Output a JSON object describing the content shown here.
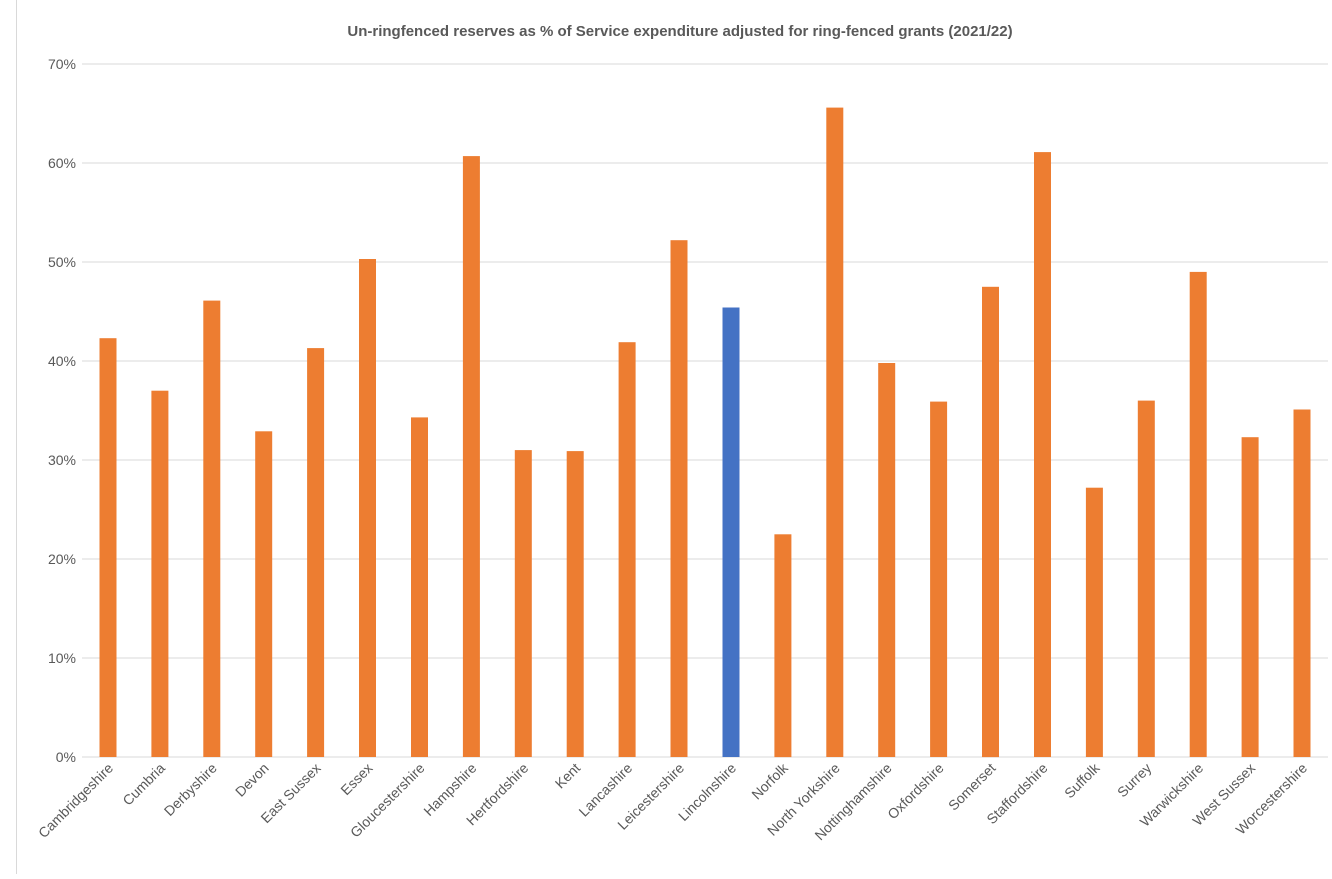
{
  "chart_data": {
    "type": "bar",
    "title": "Un-ringfenced reserves as % of Service expenditure adjusted for ring-fenced grants (2021/22)",
    "xlabel": "",
    "ylabel": "",
    "ylim": [
      0,
      70
    ],
    "yticks": [
      0,
      10,
      20,
      30,
      40,
      50,
      60,
      70
    ],
    "ytick_labels": [
      "0%",
      "10%",
      "20%",
      "30%",
      "40%",
      "50%",
      "60%",
      "70%"
    ],
    "grid": true,
    "legend": "none",
    "categories": [
      "Cambridgeshire",
      "Cumbria",
      "Derbyshire",
      "Devon",
      "East Sussex",
      "Essex",
      "Gloucestershire",
      "Hampshire",
      "Hertfordshire",
      "Kent",
      "Lancashire",
      "Leicestershire",
      "Lincolnshire",
      "Norfolk",
      "North Yorkshire",
      "Nottinghamshire",
      "Oxfordshire",
      "Somerset",
      "Staffordshire",
      "Suffolk",
      "Surrey",
      "Warwickshire",
      "West Sussex",
      "Worcestershire"
    ],
    "values": [
      42.3,
      37.0,
      46.1,
      32.9,
      41.3,
      50.3,
      34.3,
      60.7,
      31.0,
      30.9,
      41.9,
      52.2,
      45.4,
      22.5,
      65.6,
      39.8,
      35.9,
      47.5,
      61.1,
      27.2,
      36.0,
      49.0,
      32.3,
      35.1
    ],
    "highlight_category": "Lincolnshire",
    "colors": {
      "default": "#ED7D31",
      "highlight": "#4472C4",
      "grid": "#d9d9d9",
      "text": "#595959"
    }
  }
}
